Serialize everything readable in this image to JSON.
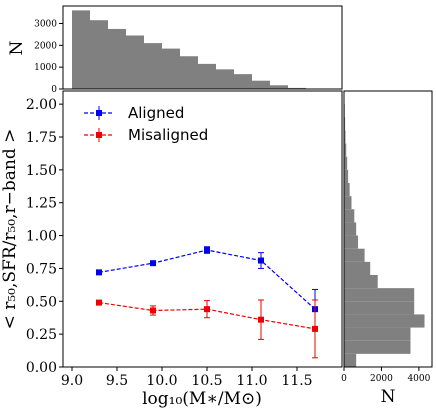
{
  "chart_data": [
    {
      "type": "line",
      "panel": "main",
      "xlabel": "log₁₀(M∗/M⊙)",
      "ylabel": "< r₅₀,SFR/r₅₀,r−band >",
      "xlim": [
        8.9,
        12.0
      ],
      "ylim": [
        0.0,
        2.1
      ],
      "xticks": [
        "9.0",
        "9.5",
        "10.0",
        "10.5",
        "11.0",
        "11.5"
      ],
      "yticks": [
        "0.00",
        "0.25",
        "0.50",
        "0.75",
        "1.00",
        "1.25",
        "1.50",
        "1.75",
        "2.00"
      ],
      "legend_position": "top-left",
      "series": [
        {
          "name": "Aligned",
          "color": "#0000ee",
          "x": [
            9.3,
            9.9,
            10.5,
            11.1,
            11.7
          ],
          "y": [
            0.72,
            0.79,
            0.89,
            0.81,
            0.44
          ],
          "err": [
            0.015,
            0.015,
            0.025,
            0.06,
            0.15
          ]
        },
        {
          "name": "Misaligned",
          "color": "#ee0000",
          "x": [
            9.3,
            9.9,
            10.5,
            11.1,
            11.7
          ],
          "y": [
            0.49,
            0.43,
            0.44,
            0.36,
            0.29
          ],
          "err": [
            0.015,
            0.035,
            0.065,
            0.15,
            0.22
          ]
        }
      ]
    },
    {
      "type": "bar",
      "panel": "top-histogram",
      "ylabel": "N",
      "xlim": [
        8.9,
        12.0
      ],
      "ylim": [
        0,
        3800
      ],
      "yticks": [
        "0",
        "1000",
        "2000",
        "3000"
      ],
      "bin_width": 0.2,
      "bin_starts": [
        9.0,
        9.2,
        9.4,
        9.6,
        9.8,
        10.0,
        10.2,
        10.4,
        10.6,
        10.8,
        11.0,
        11.2,
        11.4
      ],
      "values": [
        3600,
        3150,
        2750,
        2450,
        2100,
        1850,
        1500,
        1150,
        900,
        680,
        380,
        170,
        50
      ],
      "color": "#808080"
    },
    {
      "type": "bar",
      "orientation": "horizontal",
      "panel": "right-histogram",
      "xlabel": "N",
      "xlim": [
        0,
        4700
      ],
      "ylim": [
        0.0,
        2.1
      ],
      "xticks": [
        "0",
        "2000",
        "4000"
      ],
      "bin_height": 0.1,
      "bin_starts": [
        0.0,
        0.1,
        0.2,
        0.3,
        0.4,
        0.5,
        0.6,
        0.7,
        0.8,
        0.9,
        1.0,
        1.1,
        1.2,
        1.3,
        1.4,
        1.5,
        1.6,
        1.7,
        1.8,
        1.9,
        2.0
      ],
      "values": [
        650,
        3550,
        3550,
        4300,
        3750,
        3750,
        1800,
        1400,
        1100,
        750,
        650,
        550,
        400,
        300,
        220,
        170,
        120,
        80,
        60,
        40,
        25
      ],
      "color": "#808080"
    }
  ]
}
